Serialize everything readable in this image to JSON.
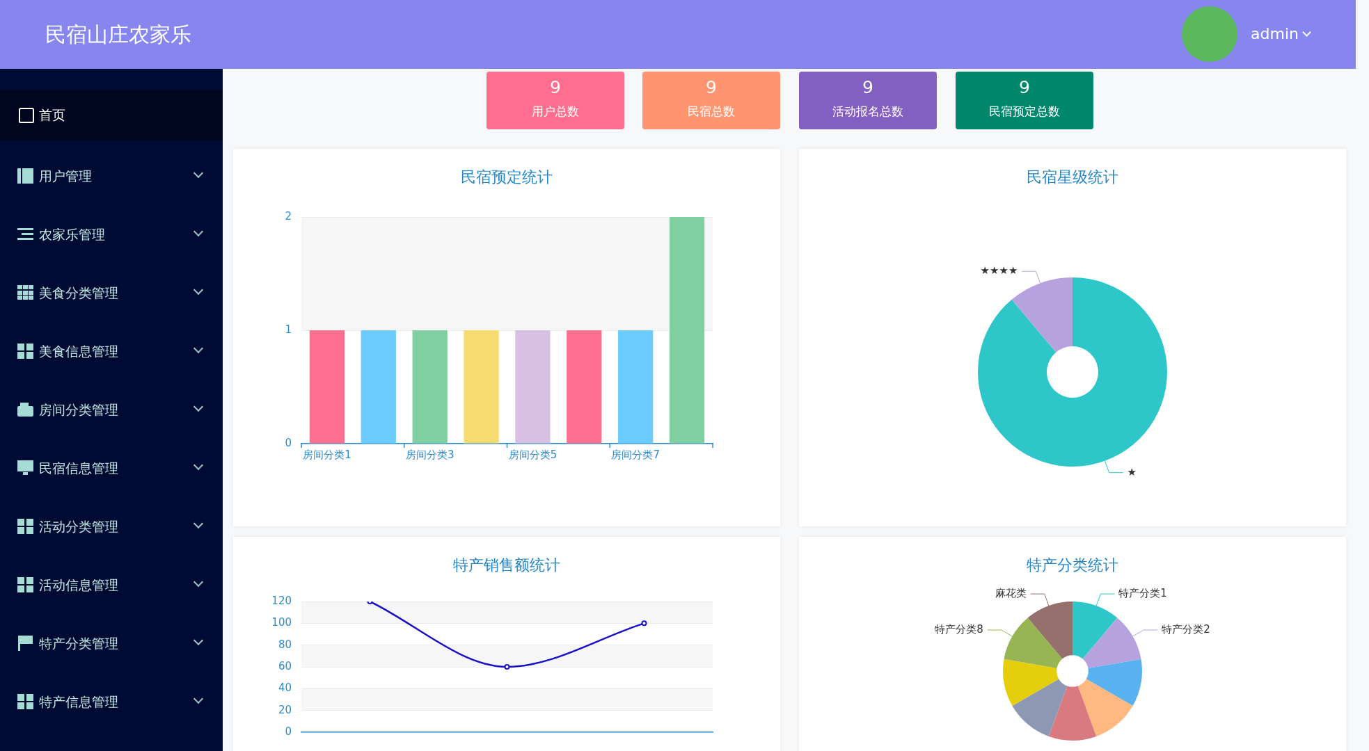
{
  "chart_data": [
    {
      "type": "other",
      "title": "民宿山庄农家乐",
      "categories": [
        "用户总数",
        "民宿总数",
        "活动报名总数",
        "民宿预定总数"
      ],
      "values": [
        9,
        9,
        9,
        9
      ],
      "data_labels": true,
      "colors": [
        "#ff6d8f",
        "#ff9570",
        "#825fc0",
        "#00876c"
      ],
      "annotations": [
        "首页",
        "用户管理",
        "农家乐管理",
        "美食分类管理",
        "美食信息管理",
        "房间分类管理",
        "民宿信息管理",
        "活动分类管理",
        "活动信息管理",
        "特产分类管理",
        "特产信息管理",
        "admin"
      ]
    },
    {
      "type": "bar",
      "title": "民宿预定统计",
      "categories": [
        "房间分类1",
        null,
        "房间分类3",
        null,
        "房间分类5",
        null,
        "房间分类7",
        null
      ],
      "values": [
        1,
        1,
        1,
        1,
        1,
        1,
        1,
        2
      ],
      "colors": [
        "#ff6e8f",
        "#6ccbfe",
        "#80cfa0",
        "#f6db6f",
        "#d8bfe3",
        "#ff6e8f",
        "#6ccbfe",
        "#80cfa0"
      ],
      "ylim": [
        0,
        2
      ],
      "yticks": [
        0,
        1,
        2
      ],
      "grid": "y"
    },
    {
      "type": "donut",
      "title": "民宿星级统计",
      "categories": [
        "★",
        "★★★★"
      ],
      "values": [
        88.9,
        11.1
      ],
      "colors": [
        "#2ec7c9",
        "#b6a2de"
      ]
    },
    {
      "type": "line",
      "title": "特产销售额统计",
      "categories": [
        null,
        null,
        null
      ],
      "values": [
        120,
        60,
        100
      ],
      "color": "#1a0fc8",
      "marker": "circle",
      "ylim": [
        0,
        120
      ],
      "yticks": [
        0,
        20,
        40,
        60,
        80,
        100,
        120
      ],
      "grid": "y"
    },
    {
      "type": "donut",
      "title": "特产分类统计",
      "categories": [
        "特产分类1",
        "特产分类2",
        null,
        null,
        null,
        null,
        null,
        "特产分类8",
        "麻花类"
      ],
      "values": [
        11.11,
        11.11,
        11.11,
        11.11,
        11.11,
        11.11,
        11.11,
        11.11,
        11.11
      ],
      "colors": [
        "#2ec7c9",
        "#b6a2de",
        "#5ab1ef",
        "#ffb980",
        "#d87a80",
        "#8d98b3",
        "#e5cf0d",
        "#97b552",
        "#95706d"
      ]
    }
  ]
}
